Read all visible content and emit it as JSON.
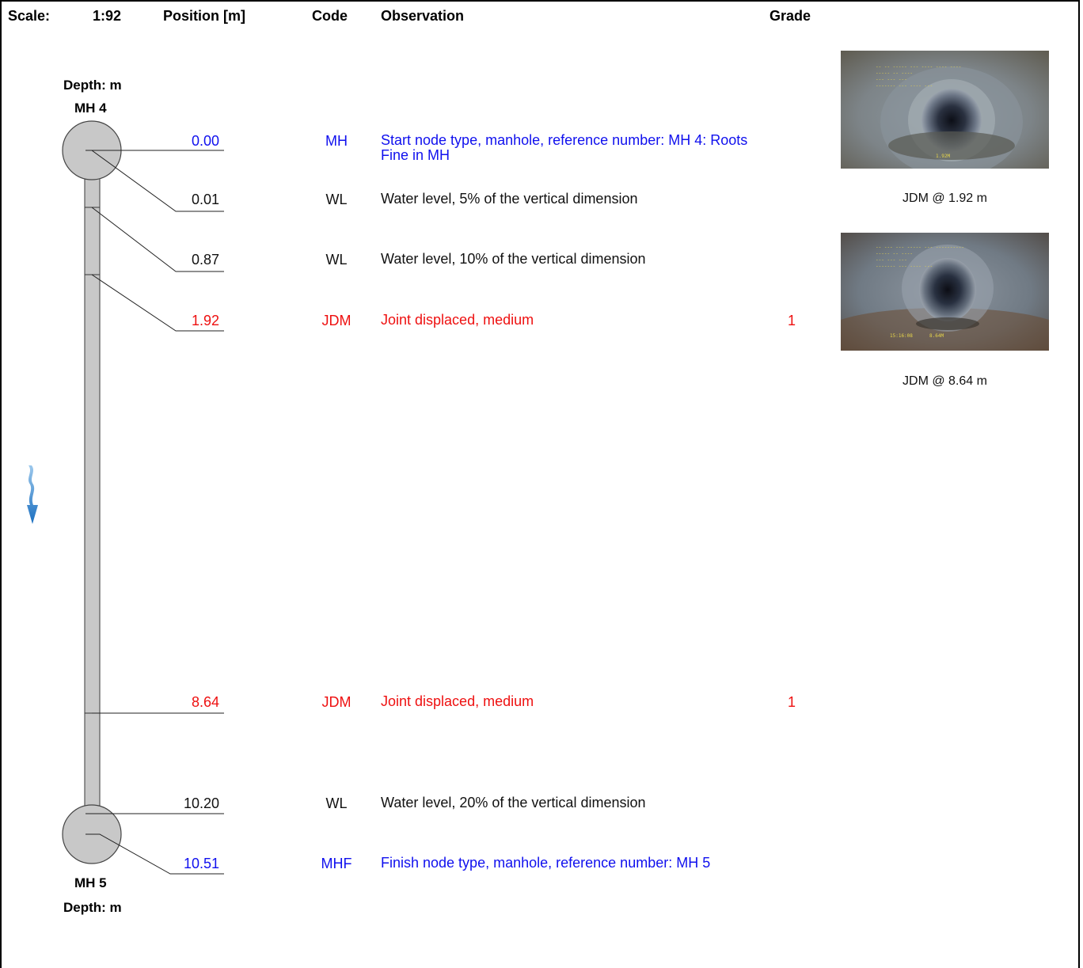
{
  "header": {
    "scale_label": "Scale:",
    "scale_value": "1:92",
    "position_label": "Position [m]",
    "code_label": "Code",
    "observation_label": "Observation",
    "grade_label": "Grade"
  },
  "start_node": {
    "depth_label": "Depth: m",
    "name": "MH 4"
  },
  "end_node": {
    "depth_label": "Depth: m",
    "name": "MH 5"
  },
  "entries": [
    {
      "position": "0.00",
      "code": "MH",
      "observation": "Start node type, manhole, reference number: MH 4: Roots Fine in MH",
      "grade": "",
      "color": "#1010ee"
    },
    {
      "position": "0.01",
      "code": "WL",
      "observation": "Water level, 5% of the vertical dimension",
      "grade": "",
      "color": "#111111"
    },
    {
      "position": "0.87",
      "code": "WL",
      "observation": "Water level, 10% of the vertical dimension",
      "grade": "",
      "color": "#111111"
    },
    {
      "position": "1.92",
      "code": "JDM",
      "observation": "Joint displaced, medium",
      "grade": "1",
      "color": "#ee1010"
    },
    {
      "position": "8.64",
      "code": "JDM",
      "observation": "Joint displaced, medium",
      "grade": "1",
      "color": "#ee1010"
    },
    {
      "position": "10.20",
      "code": "WL",
      "observation": "Water level, 20% of the vertical dimension",
      "grade": "",
      "color": "#111111"
    },
    {
      "position": "10.51",
      "code": "MHF",
      "observation": "Finish node type, manhole, reference number: MH 5",
      "grade": "",
      "color": "#1010ee"
    }
  ],
  "photos": [
    {
      "caption": "JDM @ 1.92 m",
      "overlay_distance": "1.92M"
    },
    {
      "caption": "JDM @ 8.64 m",
      "overlay_time": "15:16:08",
      "overlay_distance": "8.64M"
    }
  ],
  "flow_direction": "down"
}
